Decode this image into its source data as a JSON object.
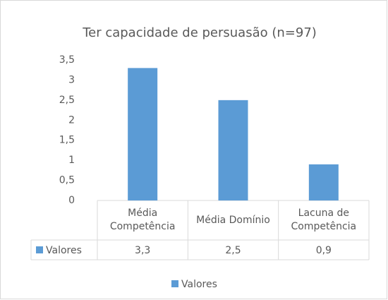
{
  "chart_data": {
    "type": "bar",
    "title": "Ter capacidade de persuasão (n=97)",
    "categories": [
      "Média Competência",
      "Média Domínio",
      "Lacuna de Competência"
    ],
    "series": [
      {
        "name": "Valores",
        "color": "#5b9bd5",
        "values": [
          3.3,
          2.5,
          0.9
        ],
        "value_labels": [
          "3,3",
          "2,5",
          "0,9"
        ]
      }
    ],
    "ylim": [
      0,
      3.5
    ],
    "yticks": [
      0,
      {
        "value": 0.5,
        "label": "0,5"
      },
      1,
      {
        "value": 1.5,
        "label": "1,5"
      },
      2,
      {
        "value": 2.5,
        "label": "2,5"
      },
      3,
      {
        "value": 3.5,
        "label": "3,5"
      }
    ],
    "grid": false,
    "legend": "bottom"
  }
}
